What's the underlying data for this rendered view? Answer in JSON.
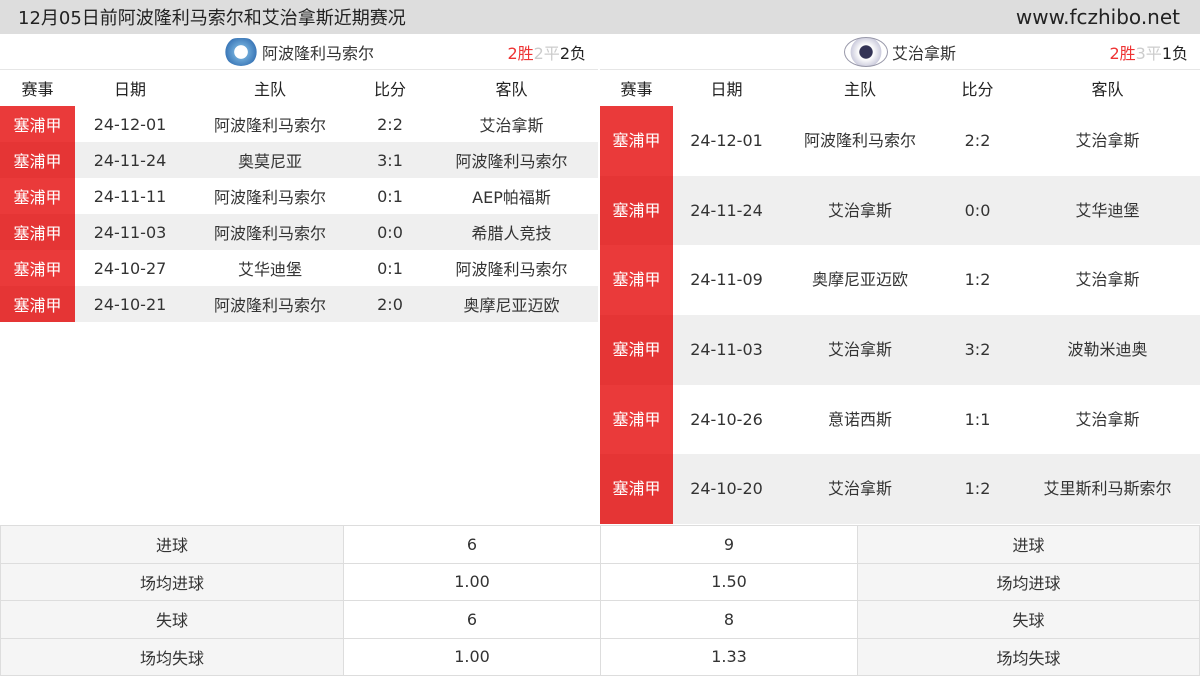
{
  "title": "12月05日前阿波隆利马索尔和艾治拿斯近期赛况",
  "site": "www.fczhibo.net",
  "columns": [
    "赛事",
    "日期",
    "主队",
    "比分",
    "客队"
  ],
  "left": {
    "team": "阿波隆利马索尔",
    "record": {
      "win": "2胜",
      "draw": "2平",
      "lose": "2负"
    },
    "rows": [
      {
        "comp": "塞浦甲",
        "date": "24-12-01",
        "home": "阿波隆利马索尔",
        "score": "2:2",
        "away": "艾治拿斯"
      },
      {
        "comp": "塞浦甲",
        "date": "24-11-24",
        "home": "奥莫尼亚",
        "score": "3:1",
        "away": "阿波隆利马索尔"
      },
      {
        "comp": "塞浦甲",
        "date": "24-11-11",
        "home": "阿波隆利马索尔",
        "score": "0:1",
        "away": "AEP帕福斯"
      },
      {
        "comp": "塞浦甲",
        "date": "24-11-03",
        "home": "阿波隆利马索尔",
        "score": "0:0",
        "away": "希腊人竞技"
      },
      {
        "comp": "塞浦甲",
        "date": "24-10-27",
        "home": "艾华迪堡",
        "score": "0:1",
        "away": "阿波隆利马索尔"
      },
      {
        "comp": "塞浦甲",
        "date": "24-10-21",
        "home": "阿波隆利马索尔",
        "score": "2:0",
        "away": "奥摩尼亚迈欧"
      }
    ]
  },
  "right": {
    "team": "艾治拿斯",
    "record": {
      "win": "2胜",
      "draw": "3平",
      "lose": "1负"
    },
    "rows": [
      {
        "comp": "塞浦甲",
        "date": "24-12-01",
        "home": "阿波隆利马索尔",
        "score": "2:2",
        "away": "艾治拿斯"
      },
      {
        "comp": "塞浦甲",
        "date": "24-11-24",
        "home": "艾治拿斯",
        "score": "0:0",
        "away": "艾华迪堡"
      },
      {
        "comp": "塞浦甲",
        "date": "24-11-09",
        "home": "奥摩尼亚迈欧",
        "score": "1:2",
        "away": "艾治拿斯"
      },
      {
        "comp": "塞浦甲",
        "date": "24-11-03",
        "home": "艾治拿斯",
        "score": "3:2",
        "away": "波勒米迪奥"
      },
      {
        "comp": "塞浦甲",
        "date": "24-10-26",
        "home": "意诺西斯",
        "score": "1:1",
        "away": "艾治拿斯"
      },
      {
        "comp": "塞浦甲",
        "date": "24-10-20",
        "home": "艾治拿斯",
        "score": "1:2",
        "away": "艾里斯利马斯索尔"
      }
    ]
  },
  "stats": [
    {
      "label": "进球",
      "left": "6",
      "right": "9"
    },
    {
      "label": "场均进球",
      "left": "1.00",
      "right": "1.50"
    },
    {
      "label": "失球",
      "left": "6",
      "right": "8"
    },
    {
      "label": "场均失球",
      "left": "1.00",
      "right": "1.33"
    }
  ]
}
